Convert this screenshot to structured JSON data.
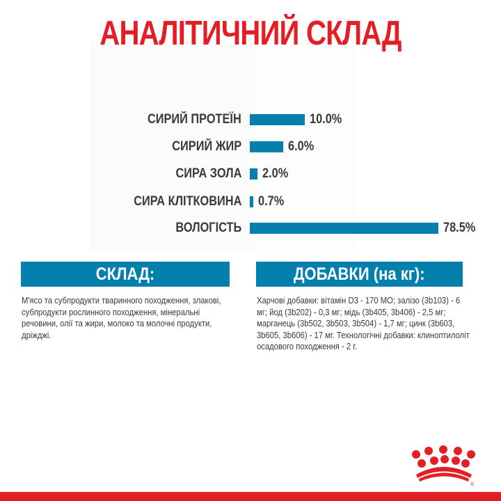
{
  "title": "АНАЛІТИЧНИЙ СКЛАД",
  "brand_color": "#e31e24",
  "accent_color": "#0580ad",
  "chart_data": {
    "type": "bar",
    "orientation": "horizontal",
    "title": "АНАЛІТИЧНИЙ СКЛАД",
    "categories": [
      "СИРИЙ ПРОТЕЇН",
      "СИРИЙ ЖИР",
      "СИРА ЗОЛА",
      "СИРА КЛІТКОВИНА",
      "ВОЛОГІСТЬ"
    ],
    "values": [
      10.0,
      6.0,
      2.0,
      0.7,
      78.5
    ],
    "labels": [
      "10.0%",
      "6.0%",
      "2.0%",
      "0.7%",
      "78.5%"
    ],
    "unit": "%",
    "grid": false,
    "legend": "none"
  },
  "composition": {
    "header": "СКЛАД:",
    "text": "М'ясо та субпродукти тваринного походження, злакові, субпродукти рослинного походження, мінеральні речовини, олії та жири, молоко та молочні продукти, дріжджі."
  },
  "additives": {
    "header": "ДОБАВКИ (на кг):",
    "text": "Харчові добавки: вітамін D3 - 170 МО; залізо (3b103) - 6 мг; йод (3b202) - 0,3 мг; мідь (3b405, 3b406) - 2,5 мг; марганець (3b502, 3b503, 3b504) - 1,7 мг; цинк (3b603, 3b605, 3b606) - 17 мг. Технологічні добавки: клиноптилоліт осадового походження - 2 г."
  },
  "logo": {
    "icon": "crown-icon",
    "mark": "®"
  }
}
